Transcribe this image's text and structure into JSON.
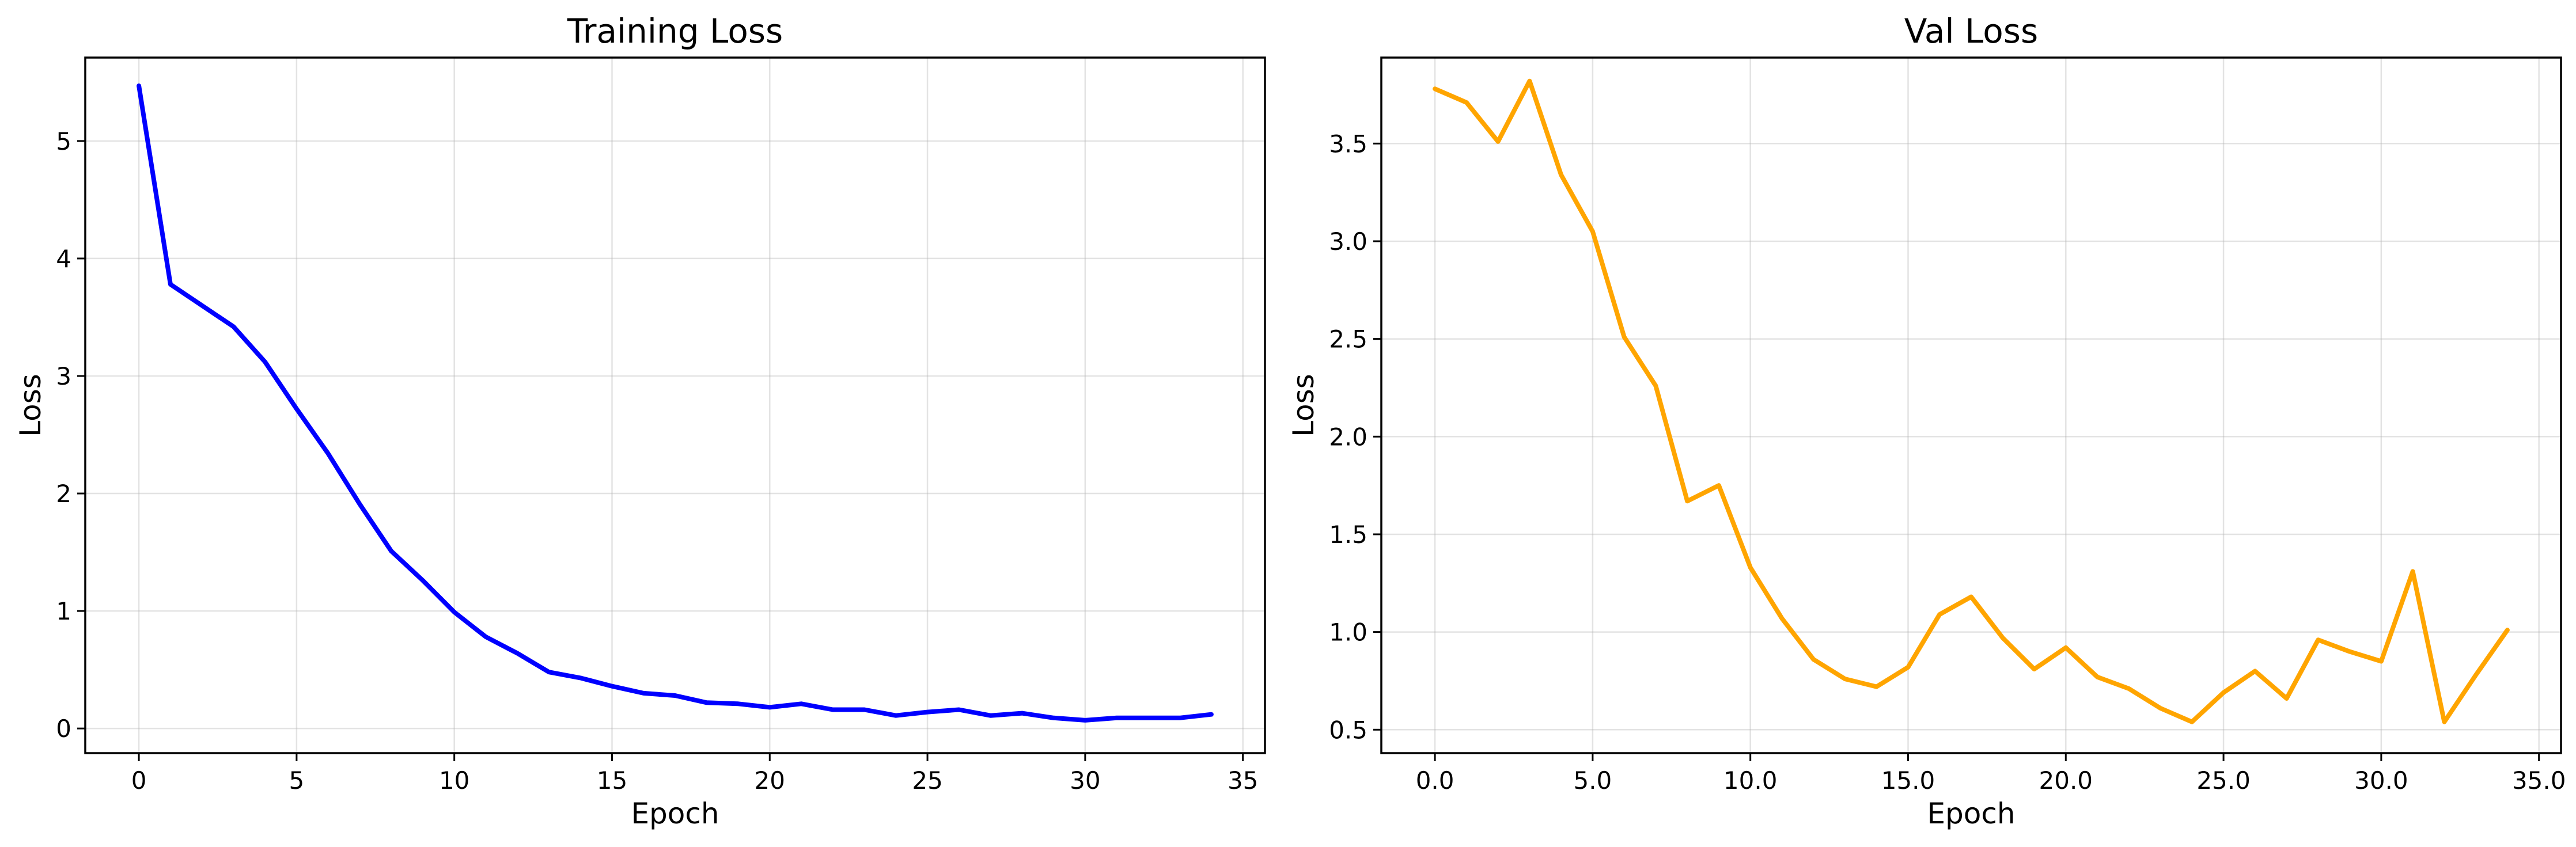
{
  "chart_data": [
    {
      "type": "line",
      "title": "Training Loss",
      "xlabel": "Epoch",
      "ylabel": "Loss",
      "xlim": [
        -1.7,
        35.7
      ],
      "ylim": [
        -0.21,
        5.71
      ],
      "xticks": [
        0,
        5,
        10,
        15,
        20,
        25,
        30,
        35
      ],
      "yticks": [
        0,
        1,
        2,
        3,
        4,
        5
      ],
      "tick_format": "int",
      "grid": true,
      "series": [
        {
          "color": "#0000ff",
          "x": [
            0,
            1,
            2,
            3,
            4,
            5,
            6,
            7,
            8,
            9,
            10,
            11,
            12,
            13,
            14,
            15,
            16,
            17,
            18,
            19,
            20,
            21,
            22,
            23,
            24,
            25,
            26,
            27,
            28,
            29,
            30,
            31,
            32,
            33,
            34
          ],
          "y": [
            5.47,
            3.78,
            3.6,
            3.42,
            3.12,
            2.72,
            2.34,
            1.91,
            1.51,
            1.26,
            0.99,
            0.78,
            0.64,
            0.48,
            0.43,
            0.36,
            0.3,
            0.28,
            0.22,
            0.21,
            0.18,
            0.21,
            0.16,
            0.16,
            0.11,
            0.14,
            0.16,
            0.11,
            0.13,
            0.09,
            0.07,
            0.09,
            0.09,
            0.09,
            0.12
          ]
        }
      ]
    },
    {
      "type": "line",
      "title": "Val Loss",
      "xlabel": "Epoch",
      "ylabel": "Loss",
      "xlim": [
        -1.7,
        35.7
      ],
      "ylim": [
        0.38,
        3.94
      ],
      "xticks": [
        0,
        5,
        10,
        15,
        20,
        25,
        30,
        35
      ],
      "yticks": [
        0.5,
        1.0,
        1.5,
        2.0,
        2.5,
        3.0,
        3.5
      ],
      "tick_format": "1dp",
      "grid": true,
      "series": [
        {
          "color": "#ffa500",
          "x": [
            0,
            1,
            2,
            3,
            4,
            5,
            6,
            7,
            8,
            9,
            10,
            11,
            12,
            13,
            14,
            15,
            16,
            17,
            18,
            19,
            20,
            21,
            22,
            23,
            24,
            25,
            26,
            27,
            28,
            29,
            30,
            31,
            32,
            33,
            34
          ],
          "y": [
            3.78,
            3.71,
            3.51,
            3.82,
            3.34,
            3.05,
            2.51,
            2.26,
            1.67,
            1.75,
            1.33,
            1.07,
            0.86,
            0.76,
            0.72,
            0.82,
            1.09,
            1.18,
            0.97,
            0.81,
            0.92,
            0.77,
            0.71,
            0.61,
            0.54,
            0.69,
            0.8,
            0.66,
            0.96,
            0.9,
            0.85,
            1.31,
            0.54,
            0.78,
            1.01
          ]
        }
      ]
    }
  ]
}
